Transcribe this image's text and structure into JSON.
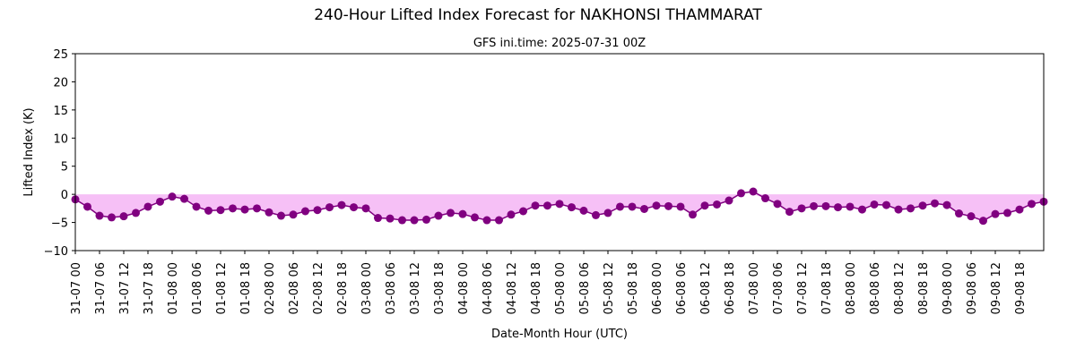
{
  "chart_data": {
    "type": "line",
    "title": "240-Hour Lifted Index Forecast for NAKHONSI THAMMARAT",
    "subtitle": "GFS ini.time: 2025-07-31 00Z",
    "xlabel": "Date-Month Hour (UTC)",
    "ylabel": "Lifted Index (K)",
    "ylim": [
      -10,
      25
    ],
    "yticks": [
      -10,
      -5,
      0,
      5,
      10,
      15,
      20,
      25
    ],
    "grid": false,
    "line_color": "#800080",
    "fill_color": "#ee82ee",
    "x_tick_labels": [
      "31-07 00",
      "31-07 06",
      "31-07 12",
      "31-07 18",
      "01-08 00",
      "01-08 06",
      "01-08 12",
      "01-08 18",
      "02-08 00",
      "02-08 06",
      "02-08 12",
      "02-08 18",
      "03-08 00",
      "03-08 06",
      "03-08 12",
      "03-08 18",
      "04-08 00",
      "04-08 06",
      "04-08 12",
      "04-08 18",
      "05-08 00",
      "05-08 06",
      "05-08 12",
      "05-08 18",
      "06-08 00",
      "06-08 06",
      "06-08 12",
      "06-08 18",
      "07-08 00",
      "07-08 06",
      "07-08 12",
      "07-08 18",
      "08-08 00",
      "08-08 06",
      "08-08 12",
      "08-08 18",
      "09-08 00",
      "09-08 06",
      "09-08 12",
      "09-08 18"
    ],
    "x_hours": [
      0,
      3,
      6,
      9,
      12,
      15,
      18,
      21,
      24,
      27,
      30,
      33,
      36,
      39,
      42,
      45,
      48,
      51,
      54,
      57,
      60,
      63,
      66,
      69,
      72,
      75,
      78,
      81,
      84,
      87,
      90,
      93,
      96,
      99,
      102,
      105,
      108,
      111,
      114,
      117,
      120,
      123,
      126,
      129,
      132,
      135,
      138,
      141,
      144,
      147,
      150,
      153,
      156,
      159,
      162,
      165,
      168,
      171,
      174,
      177,
      180,
      183,
      186,
      189,
      192,
      195,
      198,
      201,
      204,
      207,
      210,
      213,
      216,
      219,
      222,
      225,
      228,
      231,
      234,
      237,
      240
    ],
    "values": [
      -0.9,
      -2.2,
      -3.8,
      -4.1,
      -3.9,
      -3.3,
      -2.2,
      -1.3,
      -0.4,
      -0.8,
      -2.2,
      -2.9,
      -2.8,
      -2.5,
      -2.7,
      -2.5,
      -3.2,
      -3.8,
      -3.6,
      -3.0,
      -2.8,
      -2.3,
      -1.9,
      -2.3,
      -2.5,
      -4.2,
      -4.3,
      -4.6,
      -4.6,
      -4.5,
      -3.8,
      -3.3,
      -3.5,
      -4.1,
      -4.6,
      -4.6,
      -3.6,
      -3.0,
      -2.0,
      -2.0,
      -1.7,
      -2.3,
      -2.9,
      -3.7,
      -3.3,
      -2.2,
      -2.2,
      -2.6,
      -2.0,
      -2.1,
      -2.2,
      -3.6,
      -2.0,
      -1.8,
      -1.1,
      0.2,
      0.5,
      -0.7,
      -1.7,
      -3.1,
      -2.5,
      -2.1,
      -2.1,
      -2.3,
      -2.2,
      -2.7,
      -1.8,
      -1.9,
      -2.7,
      -2.5,
      -2.0,
      -1.6,
      -1.9,
      -3.4,
      -3.9,
      -4.7,
      -3.5,
      -3.3,
      -2.7,
      -1.7,
      -1.3
    ]
  }
}
